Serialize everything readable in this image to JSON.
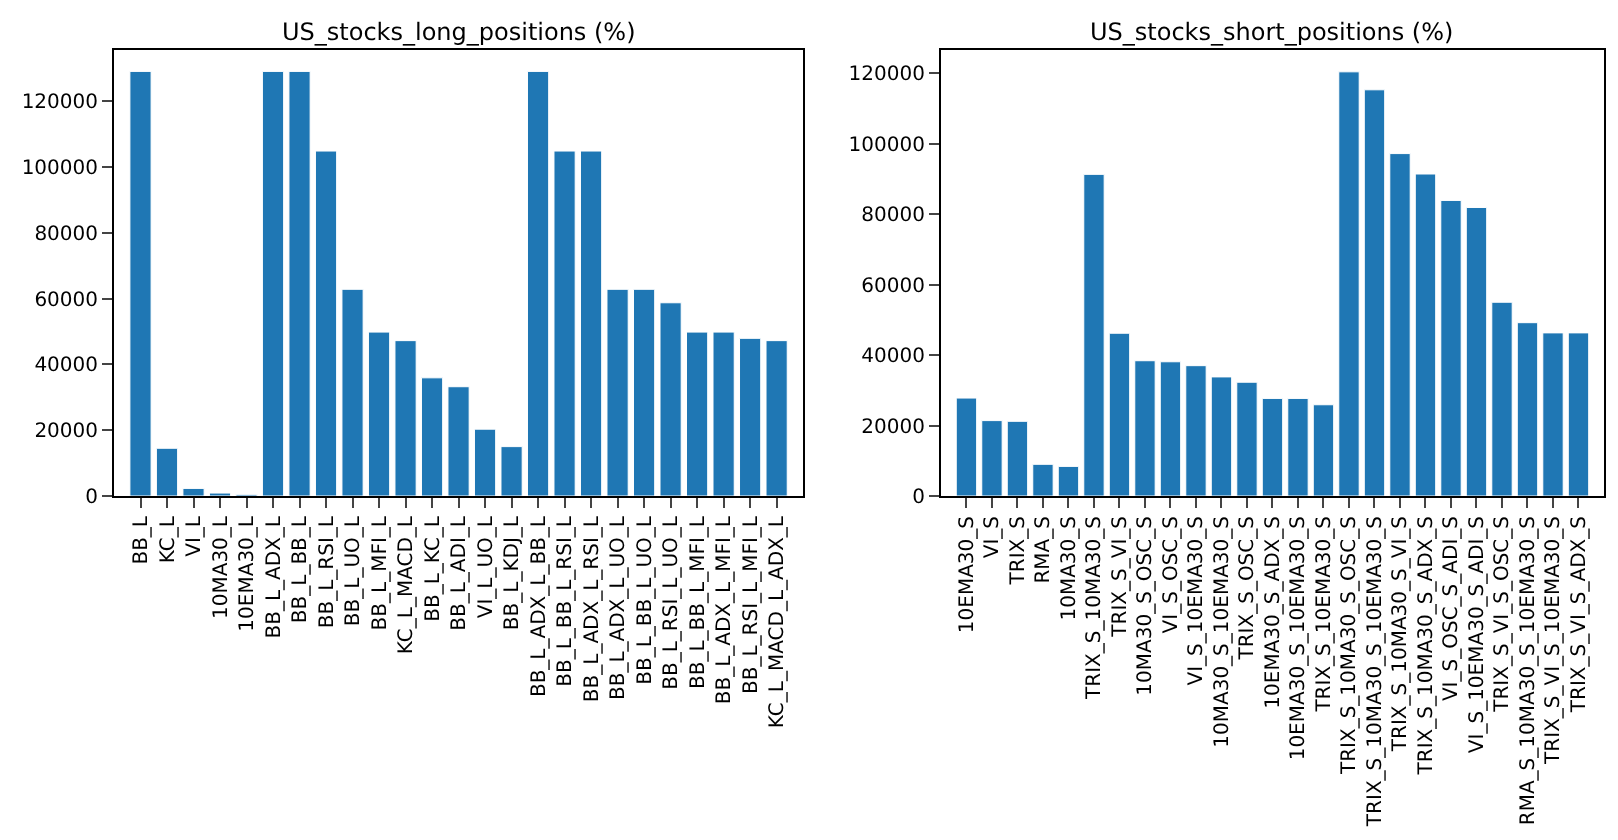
{
  "chart_data": [
    {
      "type": "bar",
      "title": "US_stocks_long_positions (%)",
      "color": "#1f77b4",
      "ylim": [
        0,
        135500
      ],
      "yticks": [
        0,
        20000,
        40000,
        60000,
        80000,
        100000,
        120000
      ],
      "categories": [
        "BB_L",
        "KC_L",
        "VI_L",
        "10MA30_L",
        "10EMA30_L",
        "BB_L_ADX_L",
        "BB_L_BB_L",
        "BB_L_RSI_L",
        "BB_L_UO_L",
        "BB_L_MFI_L",
        "KC_L_MACD_L",
        "BB_L_KC_L",
        "BB_L_ADI_L",
        "VI_L_UO_L",
        "BB_L_KDJ_L",
        "BB_L_ADX_L_BB_L",
        "BB_L_BB_L_RSI_L",
        "BB_L_ADX_L_RSI_L",
        "BB_L_ADX_L_UO_L",
        "BB_L_BB_L_UO_L",
        "BB_L_RSI_L_UO_L",
        "BB_L_BB_L_MFI_L",
        "BB_L_ADX_L_MFI_L",
        "BB_L_RSI_L_MFI_L",
        "KC_L_MACD_L_ADX_L"
      ],
      "values": [
        129000,
        14500,
        2300,
        900,
        500,
        129000,
        129000,
        104800,
        62800,
        49800,
        47200,
        35900,
        33200,
        20300,
        15000,
        129000,
        104800,
        104800,
        62800,
        62800,
        58700,
        49800,
        49800,
        47900,
        47200
      ]
    },
    {
      "type": "bar",
      "title": "US_stocks_short_positions (%)",
      "color": "#1f77b4",
      "ylim": [
        0,
        126600
      ],
      "yticks": [
        0,
        20000,
        40000,
        60000,
        80000,
        100000,
        120000
      ],
      "categories": [
        "10EMA30_S",
        "VI_S",
        "TRIX_S",
        "RMA_S",
        "10MA30_S",
        "TRIX_S_10MA30_S",
        "TRIX_S_VI_S",
        "10MA30_S_OSC_S",
        "VI_S_OSC_S",
        "VI_S_10EMA30_S",
        "10MA30_S_10EMA30_S",
        "TRIX_S_OSC_S",
        "10EMA30_S_ADX_S",
        "10EMA30_S_10EMA30_S",
        "TRIX_S_10EMA30_S",
        "TRIX_S_10MA30_S_OSC_S",
        "TRIX_S_10MA30_S_10EMA30_S",
        "TRIX_S_10MA30_S_VI_S",
        "TRIX_S_10MA30_S_ADX_S",
        "VI_S_OSC_S_ADI_S",
        "VI_S_10EMA30_S_ADI_S",
        "TRIX_S_VI_S_OSC_S",
        "RMA_S_10MA30_S_10EMA30_S",
        "TRIX_S_VI_S_10EMA30_S",
        "TRIX_S_VI_S_ADX_S"
      ],
      "values": [
        27800,
        21400,
        21200,
        9000,
        8400,
        91300,
        46200,
        38400,
        38100,
        37000,
        33800,
        32300,
        27700,
        27700,
        25900,
        120400,
        115300,
        97200,
        91400,
        83900,
        81900,
        55000,
        49200,
        46300,
        46300
      ]
    }
  ]
}
